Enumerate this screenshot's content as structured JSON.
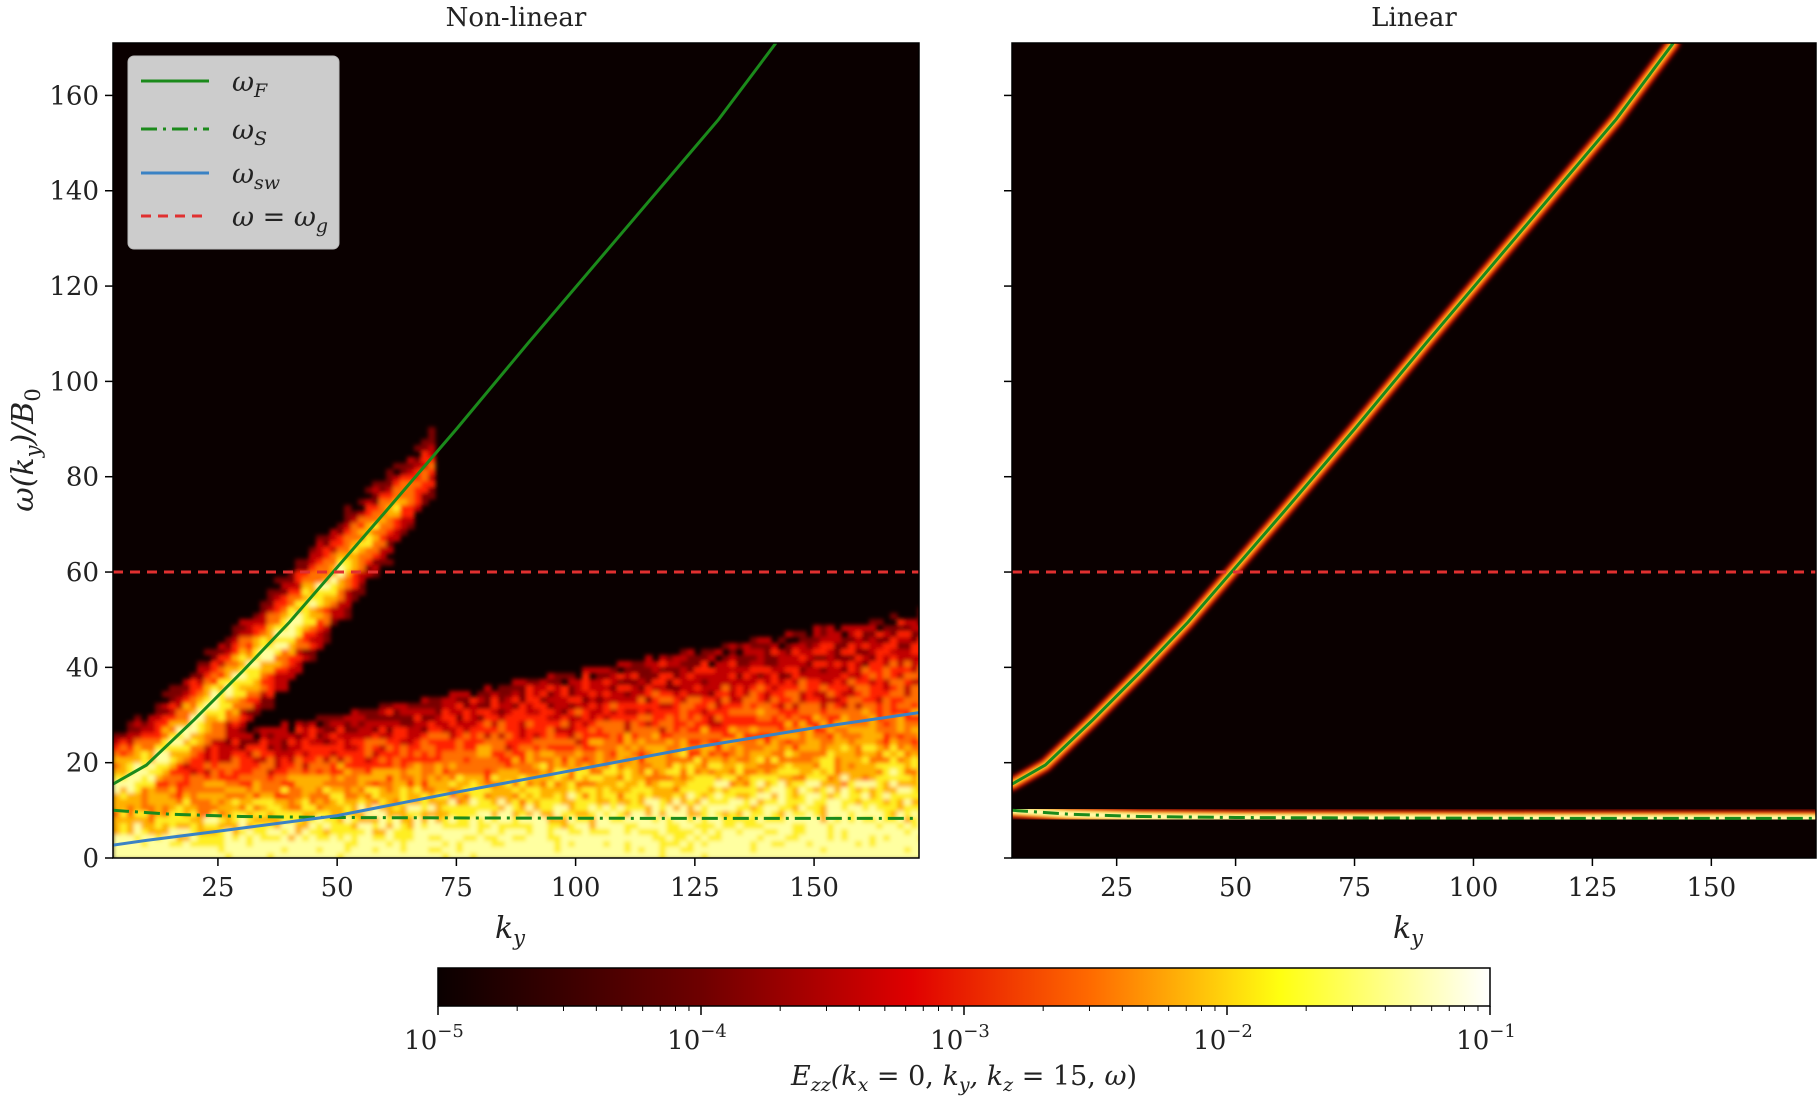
{
  "chart_data": [
    {
      "type": "heatmap",
      "title": "Non-linear",
      "xlabel": "k_y",
      "ylabel": "ω(k_y)/B_0",
      "xlim": [
        3,
        172
      ],
      "ylim": [
        0,
        171
      ],
      "xticks": [
        25,
        50,
        75,
        100,
        125,
        150
      ],
      "yticks": [
        0,
        20,
        40,
        60,
        80,
        100,
        120,
        140,
        160
      ],
      "legend": {
        "position": "top-left",
        "entries": [
          {
            "label": "ω_F",
            "color": "#1b8a1b",
            "style": "solid"
          },
          {
            "label": "ω_S",
            "color": "#1b8a1b",
            "style": "dash-dot"
          },
          {
            "label": "ω_sw",
            "color": "#3a82c4",
            "style": "solid"
          },
          {
            "label": "ω = ω_g",
            "color": "#e03030",
            "style": "dashed"
          }
        ]
      },
      "series": [
        {
          "name": "ω_F",
          "x": [
            3,
            10,
            20,
            30,
            40,
            50,
            60,
            75,
            90,
            110,
            130,
            142
          ],
          "y": [
            15.5,
            19.5,
            29,
            39,
            49.5,
            61,
            72.5,
            90,
            108,
            131.5,
            155,
            171
          ]
        },
        {
          "name": "ω_S",
          "x": [
            3,
            15,
            30,
            50,
            80,
            120,
            172
          ],
          "y": [
            10,
            9.2,
            8.7,
            8.5,
            8.4,
            8.3,
            8.3
          ]
        },
        {
          "name": "ω_sw",
          "x": [
            3,
            10,
            25,
            50,
            75,
            100,
            125,
            150,
            172
          ],
          "y": [
            2.7,
            3.7,
            5.6,
            8.9,
            13.8,
            18.5,
            23.2,
            27.3,
            30.5
          ]
        },
        {
          "name": "ω = ω_g",
          "x": [
            3,
            172
          ],
          "y": [
            60,
            60
          ]
        }
      ]
    },
    {
      "type": "heatmap",
      "title": "Linear",
      "xlabel": "k_y",
      "ylabel": "",
      "xlim": [
        3,
        172
      ],
      "ylim": [
        0,
        171
      ],
      "xticks": [
        25,
        50,
        75,
        100,
        125,
        150
      ],
      "yticks": [
        0,
        20,
        40,
        60,
        80,
        100,
        120,
        140,
        160
      ],
      "series": [
        {
          "name": "ω_F",
          "x": [
            3,
            10,
            20,
            30,
            40,
            50,
            60,
            75,
            90,
            110,
            130,
            142
          ],
          "y": [
            15.5,
            19.5,
            29,
            39,
            49.5,
            61,
            72.5,
            90,
            108,
            131.5,
            155,
            171
          ]
        },
        {
          "name": "ω_S",
          "x": [
            3,
            15,
            30,
            50,
            80,
            120,
            172
          ],
          "y": [
            10,
            9.2,
            8.7,
            8.5,
            8.4,
            8.3,
            8.3
          ]
        },
        {
          "name": "ω = ω_g",
          "x": [
            3,
            172
          ],
          "y": [
            60,
            60
          ]
        }
      ]
    }
  ],
  "colorbar": {
    "label": "E_zz(k_x = 0, k_y, k_z = 15, ω)",
    "scale": "log",
    "range": [
      1e-05,
      0.1
    ],
    "ticks": [
      "10^-5",
      "10^-4",
      "10^-3",
      "10^-2",
      "10^-1"
    ],
    "colormap": "hot"
  },
  "colors": {
    "background": "#0a0000",
    "omega_F": "#1b8a1b",
    "omega_S": "#1b8a1b",
    "omega_sw": "#3a82c4",
    "omega_g": "#e03030"
  }
}
